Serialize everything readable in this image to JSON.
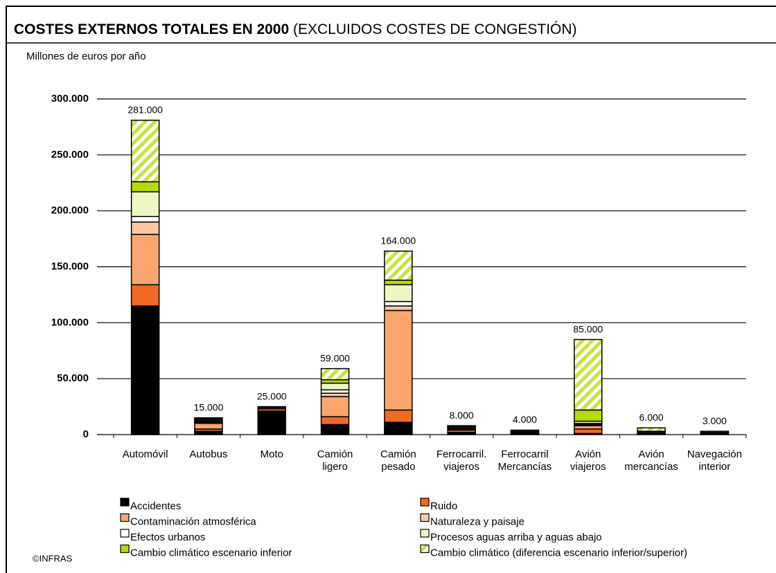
{
  "chart_data": {
    "type": "stacked_bar",
    "title": "COSTES EXTERNOS TOTALES EN 2000",
    "subtitle": "(EXCLUIDOS COSTES DE  CONGESTIÓN)",
    "y_label": "Millones de euros por año",
    "source": "©INFRAS",
    "categories": [
      "Automóvil",
      "Autobus",
      "Moto",
      "Camión ligero",
      "Camión pesado",
      "Ferrocarril. viajeros",
      "Ferrocarril Mercancías",
      "Avión viajeros",
      "Avión mercancías",
      "Navegación interior"
    ],
    "series": [
      {
        "name": "Accidentes",
        "color": "#000000",
        "values": [
          115000,
          3000,
          21000,
          9000,
          11000,
          2000,
          1000,
          1000,
          0,
          1000
        ]
      },
      {
        "name": "Ruido",
        "color": "#f26a21",
        "values": [
          19000,
          2000,
          2000,
          7000,
          11000,
          2000,
          1000,
          4000,
          1000,
          0
        ]
      },
      {
        "name": "Contaminación atmosférica",
        "color": "#f9a66e",
        "values": [
          45000,
          5000,
          1000,
          18000,
          89000,
          1000,
          1000,
          3000,
          1000,
          1000
        ]
      },
      {
        "name": "Naturaleza y paisaje",
        "color": "#fcc9a6",
        "values": [
          11000,
          1000,
          0,
          3000,
          4000,
          1000,
          0,
          1000,
          0,
          0
        ]
      },
      {
        "name": "Efectos urbanos",
        "color": "#ffffff",
        "values": [
          5000,
          1000,
          0,
          3000,
          4000,
          1000,
          0,
          1000,
          0,
          0
        ]
      },
      {
        "name": "Procesos aguas arriba y aguas  abajo",
        "color": "#eef7c2",
        "values": [
          22000,
          1000,
          0,
          6000,
          15000,
          1000,
          1000,
          2000,
          0,
          1000
        ]
      },
      {
        "name": "Cambio climático escenario inferior",
        "color": "#b6dc00",
        "values": [
          9000,
          1000,
          1000,
          3000,
          4000,
          0,
          0,
          10000,
          1000,
          0
        ]
      },
      {
        "name": "Cambio climático (diferencia escenario inferior/superior)",
        "color": "#c8e23c",
        "pattern": "hatch",
        "values": [
          55000,
          1000,
          0,
          10000,
          26000,
          0,
          0,
          63000,
          3000,
          0
        ]
      }
    ],
    "totals": {
      "values": [
        281000,
        15000,
        25000,
        59000,
        164000,
        8000,
        4000,
        85000,
        6000,
        3000
      ],
      "value_labels": [
        "281.000",
        "15.000",
        "25.000",
        "59.000",
        "164.000",
        "8.000",
        "4.000",
        "85.000",
        "6.000",
        "3.000"
      ]
    },
    "ylim": [
      0,
      300000
    ],
    "yticks": [
      0,
      {
        "value": 50000,
        "label": "50.000"
      },
      {
        "value": 100000,
        "label": "100.000"
      },
      {
        "value": 150000,
        "label": "150.000"
      },
      {
        "value": 200000,
        "label": "200.000"
      },
      {
        "value": 250000,
        "label": "250.000"
      },
      {
        "value": 300000,
        "label": "300.000"
      }
    ],
    "grid": true
  }
}
